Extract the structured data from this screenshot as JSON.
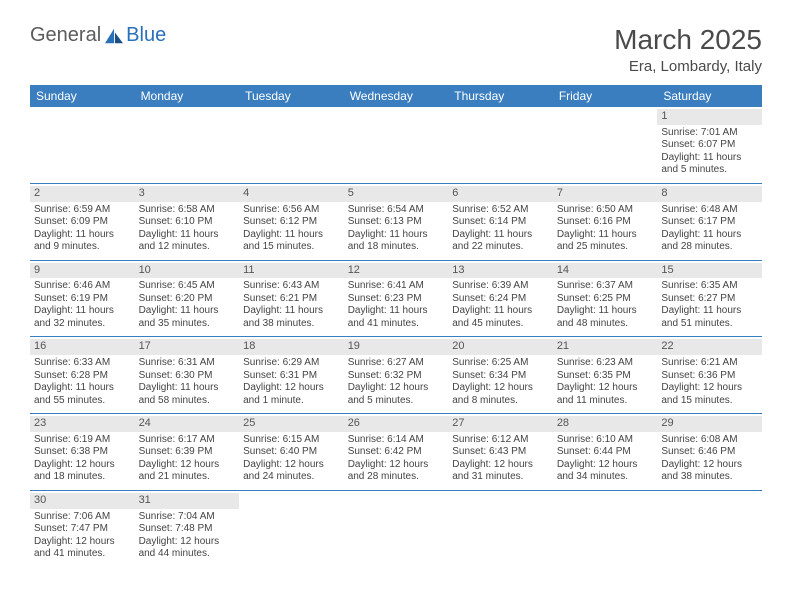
{
  "logo": {
    "text1": "General",
    "text2": "Blue"
  },
  "title": "March 2025",
  "location": "Era, Lombardy, Italy",
  "colors": {
    "header_bg": "#3a7ebf",
    "header_fg": "#ffffff",
    "daynum_bg": "#e8e8e8",
    "border": "#3a7ebf",
    "logo_gray": "#5b5b5b",
    "logo_blue": "#2970b8"
  },
  "weekdays": [
    "Sunday",
    "Monday",
    "Tuesday",
    "Wednesday",
    "Thursday",
    "Friday",
    "Saturday"
  ],
  "weeks": [
    [
      null,
      null,
      null,
      null,
      null,
      null,
      {
        "n": "1",
        "sr": "Sunrise: 7:01 AM",
        "ss": "Sunset: 6:07 PM",
        "dl": "Daylight: 11 hours and 5 minutes."
      }
    ],
    [
      {
        "n": "2",
        "sr": "Sunrise: 6:59 AM",
        "ss": "Sunset: 6:09 PM",
        "dl": "Daylight: 11 hours and 9 minutes."
      },
      {
        "n": "3",
        "sr": "Sunrise: 6:58 AM",
        "ss": "Sunset: 6:10 PM",
        "dl": "Daylight: 11 hours and 12 minutes."
      },
      {
        "n": "4",
        "sr": "Sunrise: 6:56 AM",
        "ss": "Sunset: 6:12 PM",
        "dl": "Daylight: 11 hours and 15 minutes."
      },
      {
        "n": "5",
        "sr": "Sunrise: 6:54 AM",
        "ss": "Sunset: 6:13 PM",
        "dl": "Daylight: 11 hours and 18 minutes."
      },
      {
        "n": "6",
        "sr": "Sunrise: 6:52 AM",
        "ss": "Sunset: 6:14 PM",
        "dl": "Daylight: 11 hours and 22 minutes."
      },
      {
        "n": "7",
        "sr": "Sunrise: 6:50 AM",
        "ss": "Sunset: 6:16 PM",
        "dl": "Daylight: 11 hours and 25 minutes."
      },
      {
        "n": "8",
        "sr": "Sunrise: 6:48 AM",
        "ss": "Sunset: 6:17 PM",
        "dl": "Daylight: 11 hours and 28 minutes."
      }
    ],
    [
      {
        "n": "9",
        "sr": "Sunrise: 6:46 AM",
        "ss": "Sunset: 6:19 PM",
        "dl": "Daylight: 11 hours and 32 minutes."
      },
      {
        "n": "10",
        "sr": "Sunrise: 6:45 AM",
        "ss": "Sunset: 6:20 PM",
        "dl": "Daylight: 11 hours and 35 minutes."
      },
      {
        "n": "11",
        "sr": "Sunrise: 6:43 AM",
        "ss": "Sunset: 6:21 PM",
        "dl": "Daylight: 11 hours and 38 minutes."
      },
      {
        "n": "12",
        "sr": "Sunrise: 6:41 AM",
        "ss": "Sunset: 6:23 PM",
        "dl": "Daylight: 11 hours and 41 minutes."
      },
      {
        "n": "13",
        "sr": "Sunrise: 6:39 AM",
        "ss": "Sunset: 6:24 PM",
        "dl": "Daylight: 11 hours and 45 minutes."
      },
      {
        "n": "14",
        "sr": "Sunrise: 6:37 AM",
        "ss": "Sunset: 6:25 PM",
        "dl": "Daylight: 11 hours and 48 minutes."
      },
      {
        "n": "15",
        "sr": "Sunrise: 6:35 AM",
        "ss": "Sunset: 6:27 PM",
        "dl": "Daylight: 11 hours and 51 minutes."
      }
    ],
    [
      {
        "n": "16",
        "sr": "Sunrise: 6:33 AM",
        "ss": "Sunset: 6:28 PM",
        "dl": "Daylight: 11 hours and 55 minutes."
      },
      {
        "n": "17",
        "sr": "Sunrise: 6:31 AM",
        "ss": "Sunset: 6:30 PM",
        "dl": "Daylight: 11 hours and 58 minutes."
      },
      {
        "n": "18",
        "sr": "Sunrise: 6:29 AM",
        "ss": "Sunset: 6:31 PM",
        "dl": "Daylight: 12 hours and 1 minute."
      },
      {
        "n": "19",
        "sr": "Sunrise: 6:27 AM",
        "ss": "Sunset: 6:32 PM",
        "dl": "Daylight: 12 hours and 5 minutes."
      },
      {
        "n": "20",
        "sr": "Sunrise: 6:25 AM",
        "ss": "Sunset: 6:34 PM",
        "dl": "Daylight: 12 hours and 8 minutes."
      },
      {
        "n": "21",
        "sr": "Sunrise: 6:23 AM",
        "ss": "Sunset: 6:35 PM",
        "dl": "Daylight: 12 hours and 11 minutes."
      },
      {
        "n": "22",
        "sr": "Sunrise: 6:21 AM",
        "ss": "Sunset: 6:36 PM",
        "dl": "Daylight: 12 hours and 15 minutes."
      }
    ],
    [
      {
        "n": "23",
        "sr": "Sunrise: 6:19 AM",
        "ss": "Sunset: 6:38 PM",
        "dl": "Daylight: 12 hours and 18 minutes."
      },
      {
        "n": "24",
        "sr": "Sunrise: 6:17 AM",
        "ss": "Sunset: 6:39 PM",
        "dl": "Daylight: 12 hours and 21 minutes."
      },
      {
        "n": "25",
        "sr": "Sunrise: 6:15 AM",
        "ss": "Sunset: 6:40 PM",
        "dl": "Daylight: 12 hours and 24 minutes."
      },
      {
        "n": "26",
        "sr": "Sunrise: 6:14 AM",
        "ss": "Sunset: 6:42 PM",
        "dl": "Daylight: 12 hours and 28 minutes."
      },
      {
        "n": "27",
        "sr": "Sunrise: 6:12 AM",
        "ss": "Sunset: 6:43 PM",
        "dl": "Daylight: 12 hours and 31 minutes."
      },
      {
        "n": "28",
        "sr": "Sunrise: 6:10 AM",
        "ss": "Sunset: 6:44 PM",
        "dl": "Daylight: 12 hours and 34 minutes."
      },
      {
        "n": "29",
        "sr": "Sunrise: 6:08 AM",
        "ss": "Sunset: 6:46 PM",
        "dl": "Daylight: 12 hours and 38 minutes."
      }
    ],
    [
      {
        "n": "30",
        "sr": "Sunrise: 7:06 AM",
        "ss": "Sunset: 7:47 PM",
        "dl": "Daylight: 12 hours and 41 minutes."
      },
      {
        "n": "31",
        "sr": "Sunrise: 7:04 AM",
        "ss": "Sunset: 7:48 PM",
        "dl": "Daylight: 12 hours and 44 minutes."
      },
      null,
      null,
      null,
      null,
      null
    ]
  ]
}
